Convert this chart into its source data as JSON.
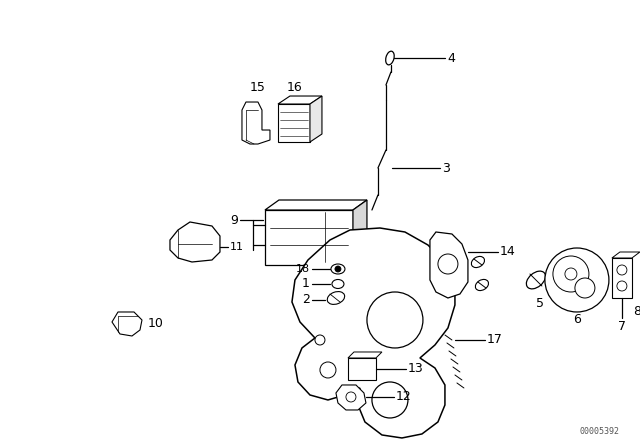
{
  "background_color": "#ffffff",
  "part_number_watermark": "00005392",
  "text_color": "#000000",
  "label_fontsize": 9,
  "small_fontsize": 8
}
